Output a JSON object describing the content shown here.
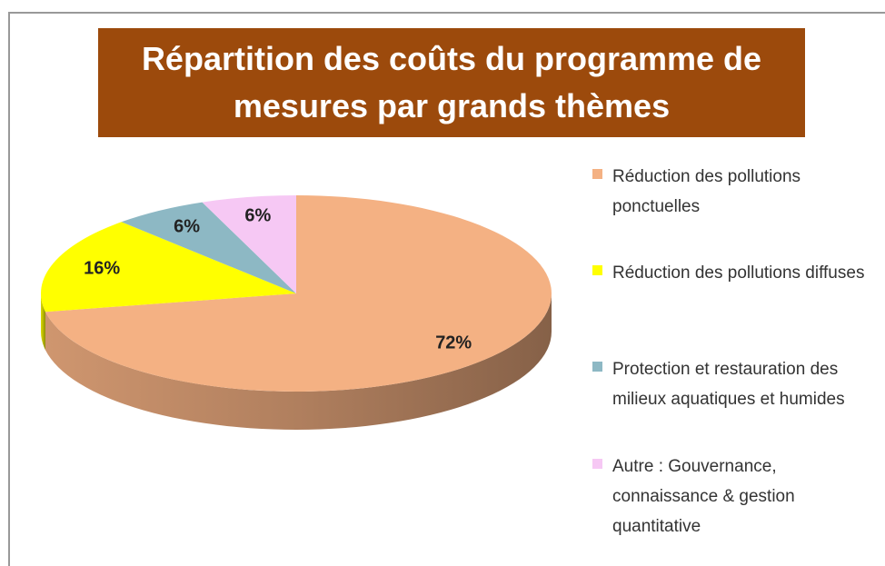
{
  "chart_data": {
    "type": "pie",
    "title": "Répartition des coûts du programme de mesures par grands thèmes",
    "categories": [
      "Réduction des pollutions ponctuelles",
      "Réduction des pollutions diffuses",
      "Protection et restauration des milieux aquatiques et humides",
      "Autre : Gouvernance, connaissance &  gestion quantitative"
    ],
    "values": [
      72,
      16,
      6,
      6
    ],
    "value_labels": [
      "72%",
      "16%",
      "6%",
      "6%"
    ],
    "colors": [
      "#f4b183",
      "#ffff00",
      "#8db8c4",
      "#f6c8f4"
    ],
    "legend": "right"
  }
}
